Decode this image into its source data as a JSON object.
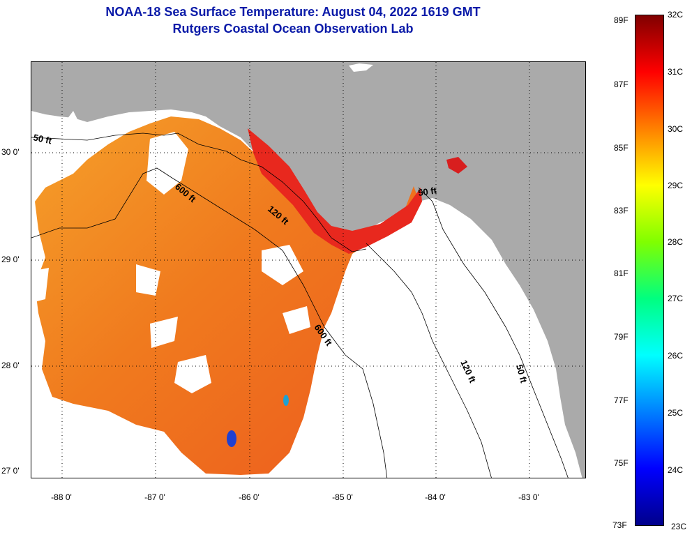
{
  "title": {
    "line1": "NOAA-18 Sea Surface Temperature:  August 04, 2022 1619 GMT",
    "line2": "Rutgers Coastal Ocean Observation Lab"
  },
  "axes": {
    "lat_labels": [
      "30 0'",
      "29 0'",
      "28 0'",
      "27 0'"
    ],
    "lon_labels": [
      "-88 0'",
      "-87 0'",
      "-86 0'",
      "-85 0'",
      "-84 0'",
      "-83 0'"
    ]
  },
  "contours": [
    "50 ft",
    "600 ft",
    "120 ft",
    "50 ft",
    "600 ft",
    "120 ft",
    "50 ft"
  ],
  "colorbar": {
    "fahrenheit": [
      "89F",
      "87F",
      "85F",
      "83F",
      "81F",
      "79F",
      "77F",
      "75F",
      "73F"
    ],
    "celsius": [
      "32C",
      "31C",
      "30C",
      "29C",
      "28C",
      "27C",
      "26C",
      "25C",
      "24C",
      "23C"
    ],
    "stops": [
      "#00008b",
      "#0000ff",
      "#0080ff",
      "#00ffff",
      "#00ff80",
      "#80ff00",
      "#ffff00",
      "#ff8000",
      "#ff0000",
      "#800000"
    ]
  },
  "colors": {
    "land": "#aaaaaa",
    "title": "#0a1aa8",
    "sst_warm": "#f0781e",
    "sst_hot": "#e8281e",
    "sst_mild": "#f5a02a"
  }
}
